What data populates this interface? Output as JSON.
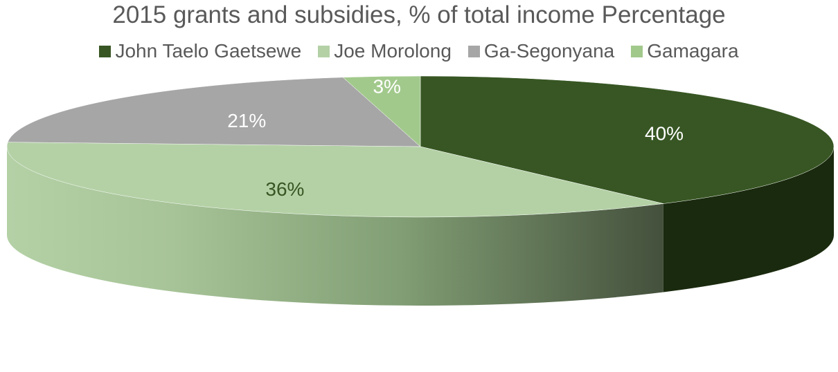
{
  "chart_data": {
    "type": "pie",
    "title": "2015 grants and subsidies, % of total income Percentage",
    "categories": [
      "John Taelo Gaetsewe",
      "Joe Morolong",
      "Ga-Segonyana",
      "Gamagara"
    ],
    "values": [
      40,
      36,
      21,
      3
    ],
    "data_labels": [
      "40%",
      "36%",
      "21%",
      "3%"
    ],
    "colors": [
      "#375623",
      "#b4d1a6",
      "#a6a6a6",
      "#a2c98c"
    ],
    "side_colors": [
      "#1a2a0e",
      "#b4d1a6",
      "#a6a6a6",
      "#a2c98c"
    ],
    "label_colors": [
      "#ffffff",
      "#375623",
      "#ffffff",
      "#ffffff"
    ],
    "legend_position": "top",
    "style": "3d"
  }
}
